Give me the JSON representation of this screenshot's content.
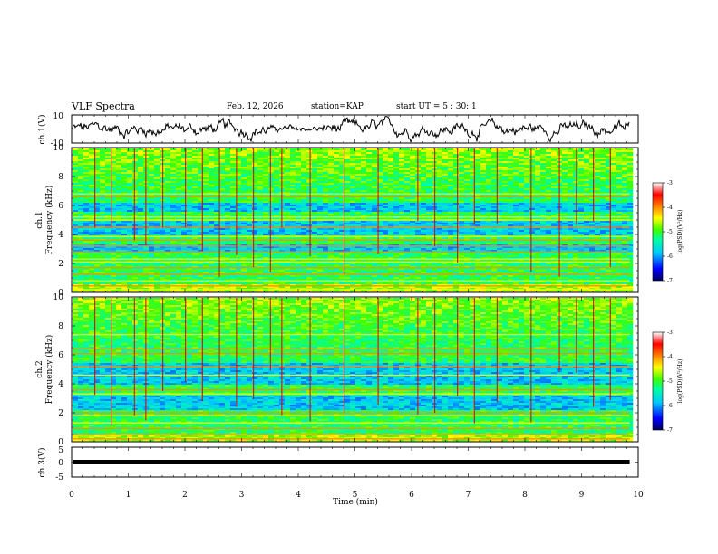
{
  "header": {
    "title": "VLF Spectra",
    "date": "Feb. 12, 2026",
    "station": "station=KAP",
    "start_ut": "start  UT =  5 : 30: 1"
  },
  "colorbar": {
    "label": "log(PSD)(V²/Hz)",
    "ticks": [
      "-3",
      "-4",
      "-5",
      "-6",
      "-7"
    ],
    "colors": [
      "#000060",
      "#0000ff",
      "#00c8ff",
      "#00ffa0",
      "#40ff00",
      "#ffff00",
      "#ff8000",
      "#ff0000",
      "#ffffff"
    ]
  },
  "chart_data": [
    {
      "type": "line",
      "name": "ch1-waveform",
      "ylabel": "ch.1(V)",
      "xlim": [
        0,
        10
      ],
      "ylim": [
        -10,
        10
      ],
      "ytick_labels": [
        "10",
        "-10"
      ],
      "x_end": 9.85,
      "approx_mean": 0,
      "approx_amplitude": 6
    },
    {
      "type": "heatmap",
      "name": "ch1-spectrogram",
      "ylabel": "ch.1",
      "ylabel2": "Frequency (kHz)",
      "xlim": [
        0,
        10
      ],
      "ylim": [
        0,
        10
      ],
      "ytick_labels": [
        "0",
        "2",
        "4",
        "6",
        "8",
        "10"
      ],
      "zlim": [
        -7,
        -3
      ],
      "x_end": 9.85,
      "line_frequencies_khz": [
        0.2,
        0.45,
        0.8,
        1.25,
        1.7,
        2.1,
        2.3,
        2.8,
        3.2,
        3.6,
        3.85,
        4.5,
        5.0,
        5.2,
        6.6,
        6.8
      ],
      "low_intensity_bands_khz": [
        [
          2.9,
          3.4
        ],
        [
          4.0,
          5.0
        ],
        [
          5.6,
          6.2
        ]
      ],
      "spike_times_min": [
        0.4,
        0.7,
        1.1,
        1.3,
        1.6,
        2.0,
        2.3,
        2.6,
        2.9,
        3.2,
        3.5,
        3.7,
        4.2,
        4.8,
        5.4,
        6.1,
        6.4,
        6.8,
        7.1,
        7.5,
        8.1,
        8.6,
        8.9,
        9.2,
        9.5
      ]
    },
    {
      "type": "heatmap",
      "name": "ch2-spectrogram",
      "ylabel": "ch.2",
      "ylabel2": "Frequency (kHz)",
      "xlim": [
        0,
        10
      ],
      "ylim": [
        0,
        10
      ],
      "ytick_labels": [
        "0",
        "2",
        "4",
        "6",
        "8",
        "10"
      ],
      "zlim": [
        -7,
        -3
      ],
      "x_end": 9.85,
      "line_frequencies_khz": [
        0.2,
        0.5,
        0.9,
        1.3,
        1.8,
        2.0,
        3.3,
        3.6,
        4.6,
        5.2,
        6.1,
        6.4,
        7.4
      ],
      "low_intensity_bands_khz": [
        [
          2.2,
          3.2
        ],
        [
          4.0,
          5.5
        ]
      ],
      "spike_times_min": [
        0.4,
        0.7,
        1.1,
        1.3,
        1.6,
        2.0,
        2.3,
        2.6,
        2.9,
        3.2,
        3.5,
        3.7,
        4.2,
        4.8,
        5.4,
        6.1,
        6.4,
        6.8,
        7.1,
        7.5,
        8.1,
        8.6,
        8.9,
        9.2,
        9.5
      ]
    },
    {
      "type": "line",
      "name": "ch3-signal",
      "ylabel": "ch.3(V)",
      "xlabel": "Time (min)",
      "xlim": [
        0,
        10
      ],
      "ylim": [
        -5,
        5
      ],
      "ytick_labels": [
        "5",
        "0",
        "-5"
      ],
      "xtick_labels": [
        "0",
        "1",
        "2",
        "3",
        "4",
        "5",
        "6",
        "7",
        "8",
        "9",
        "10"
      ],
      "level": 0,
      "x_end": 9.85
    }
  ]
}
